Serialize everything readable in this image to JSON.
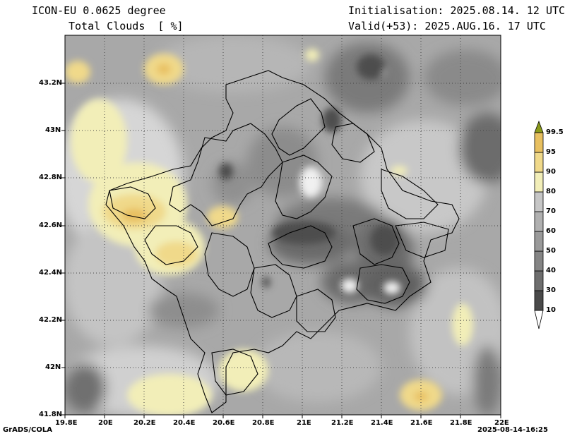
{
  "header": {
    "model": "ICON-EU 0.0625 degree",
    "field": "Total Clouds  [ %]",
    "init": "Initialisation: 2025.08.14. 12 UTC",
    "valid": "Valid(+53): 2025.AUG.16. 17 UTC"
  },
  "footer": {
    "credit": "GrADS/COLA",
    "timestamp": "2025-08-14-16:25"
  },
  "map": {
    "x_axis": {
      "range": [
        19.8,
        22.0
      ],
      "ticks": [
        "19.8E",
        "20E",
        "20.2E",
        "20.4E",
        "20.6E",
        "20.8E",
        "21E",
        "21.2E",
        "21.4E",
        "21.6E",
        "21.8E",
        "22E"
      ]
    },
    "y_axis": {
      "range": [
        41.8,
        43.4
      ],
      "ticks": [
        "41.8N",
        "42N",
        "42.2N",
        "42.4N",
        "42.6N",
        "42.8N",
        "43N",
        "43.2N"
      ]
    },
    "grid": true
  },
  "colorbar": {
    "levels": [
      "10",
      "30",
      "40",
      "50",
      "60",
      "70",
      "80",
      "90",
      "95",
      "99.5"
    ],
    "colors": [
      "#4a4a4a",
      "#6e6e6e",
      "#858585",
      "#9a9a9a",
      "#b0b0b0",
      "#c6c6c6",
      "#f2eeb8",
      "#f0d98a",
      "#e8c060",
      "#d8a020",
      "#8a9a1a"
    ]
  }
}
